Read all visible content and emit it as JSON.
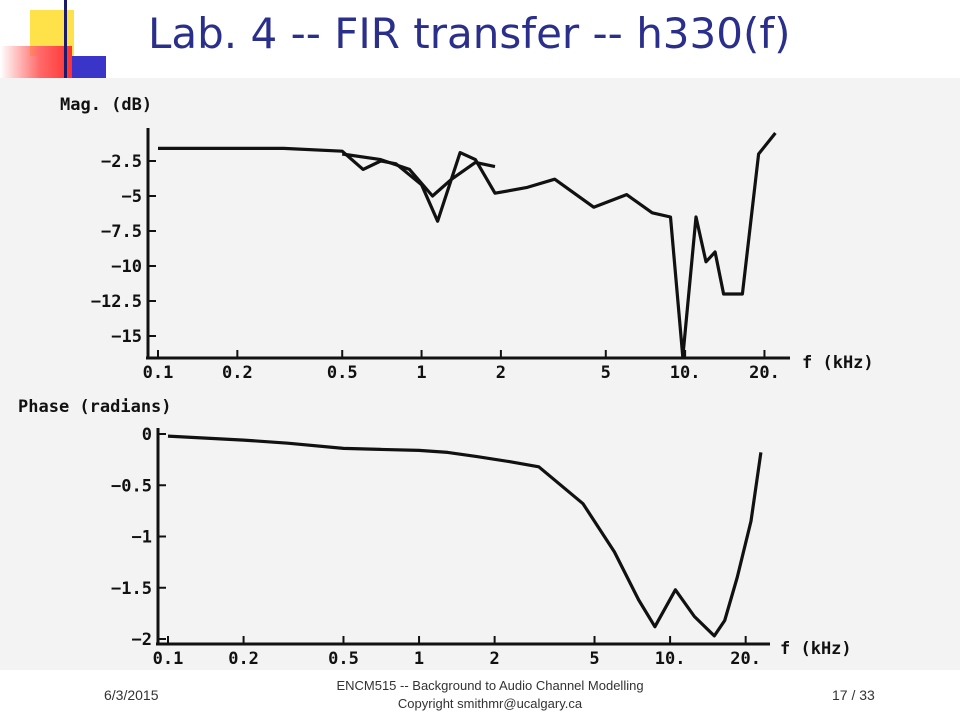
{
  "slide": {
    "title": "Lab. 4 -- FIR transfer -- h330(f)",
    "footer_date": "6/3/2015",
    "footer_line1": "ENCM515 -- Background to Audio Channel Modelling",
    "footer_line2": "Copyright smithmr@ucalgary.ca",
    "page_number": "17 / 33"
  },
  "colors": {
    "title": "#2b2f8c",
    "ink": "#111111",
    "paper": "#f3f3f3"
  },
  "chart_data": [
    {
      "type": "line",
      "ylabel": "Mag. (dB)",
      "xlabel": "f (kHz)",
      "xscale": "log",
      "xlim": [
        0.1,
        25
      ],
      "ylim": [
        -17,
        0
      ],
      "xticks": [
        {
          "value": 0.1,
          "label": "0.1"
        },
        {
          "value": 0.2,
          "label": "0.2"
        },
        {
          "value": 0.5,
          "label": "0.5"
        },
        {
          "value": 1,
          "label": "1"
        },
        {
          "value": 2,
          "label": "2"
        },
        {
          "value": 5,
          "label": "5"
        },
        {
          "value": 10,
          "label": "10."
        },
        {
          "value": 20,
          "label": "20."
        }
      ],
      "yticks": [
        {
          "value": -2.5,
          "label": "-2.5"
        },
        {
          "value": -5,
          "label": "-5"
        },
        {
          "value": -7.5,
          "label": "-7.5"
        },
        {
          "value": -10,
          "label": "-10"
        },
        {
          "value": -12.5,
          "label": "-12.5"
        },
        {
          "value": -15,
          "label": "-15"
        }
      ],
      "series": [
        {
          "x": [
            0.1,
            0.2,
            0.3,
            0.5,
            0.6,
            0.7,
            0.8,
            1.0,
            1.15,
            1.4,
            1.6,
            1.9,
            2.5,
            3.2,
            4.5,
            6.0,
            7.5,
            8.8,
            9.8,
            11.0,
            12.0,
            13.0,
            14.0,
            16.5,
            19.0,
            22.0
          ],
          "y": [
            -1.6,
            -1.6,
            -1.6,
            -1.8,
            -3.1,
            -2.5,
            -2.7,
            -4.2,
            -6.8,
            -1.9,
            -2.4,
            -4.8,
            -4.4,
            -3.8,
            -5.8,
            -4.9,
            -6.2,
            -6.5,
            -16.5,
            -6.5,
            -9.7,
            -9.0,
            -12.0,
            -12.0,
            -2.0,
            -0.5
          ]
        },
        {
          "x": [
            0.5,
            0.7,
            0.9,
            1.1,
            1.3,
            1.6,
            1.9
          ],
          "y": [
            -2.0,
            -2.4,
            -3.1,
            -5.0,
            -3.8,
            -2.6,
            -2.9
          ]
        }
      ]
    },
    {
      "type": "line",
      "ylabel": "Phase (radians)",
      "xlabel": "f (kHz)",
      "xscale": "log",
      "xlim": [
        0.1,
        25
      ],
      "ylim": [
        -2,
        0
      ],
      "xticks": [
        {
          "value": 0.1,
          "label": "0.1"
        },
        {
          "value": 0.2,
          "label": "0.2"
        },
        {
          "value": 0.5,
          "label": "0.5"
        },
        {
          "value": 1,
          "label": "1"
        },
        {
          "value": 2,
          "label": "2"
        },
        {
          "value": 5,
          "label": "5"
        },
        {
          "value": 10,
          "label": "10."
        },
        {
          "value": 20,
          "label": "20."
        }
      ],
      "yticks": [
        {
          "value": 0,
          "label": "0"
        },
        {
          "value": -0.5,
          "label": "-0.5"
        },
        {
          "value": -1,
          "label": "-1"
        },
        {
          "value": -1.5,
          "label": "-1.5"
        },
        {
          "value": -2,
          "label": "-2"
        }
      ],
      "series": [
        {
          "x": [
            0.1,
            0.2,
            0.3,
            0.5,
            0.7,
            1.0,
            1.3,
            1.7,
            2.3,
            3.0,
            4.5,
            6.0,
            7.5,
            8.7,
            10.5,
            12.5,
            15.0,
            16.5,
            18.5,
            21.0,
            23.0
          ],
          "y": [
            -0.02,
            -0.06,
            -0.09,
            -0.14,
            -0.15,
            -0.16,
            -0.18,
            -0.22,
            -0.27,
            -0.32,
            -0.68,
            -1.15,
            -1.62,
            -1.88,
            -1.52,
            -1.78,
            -1.97,
            -1.82,
            -1.4,
            -0.85,
            -0.18
          ]
        }
      ]
    }
  ]
}
